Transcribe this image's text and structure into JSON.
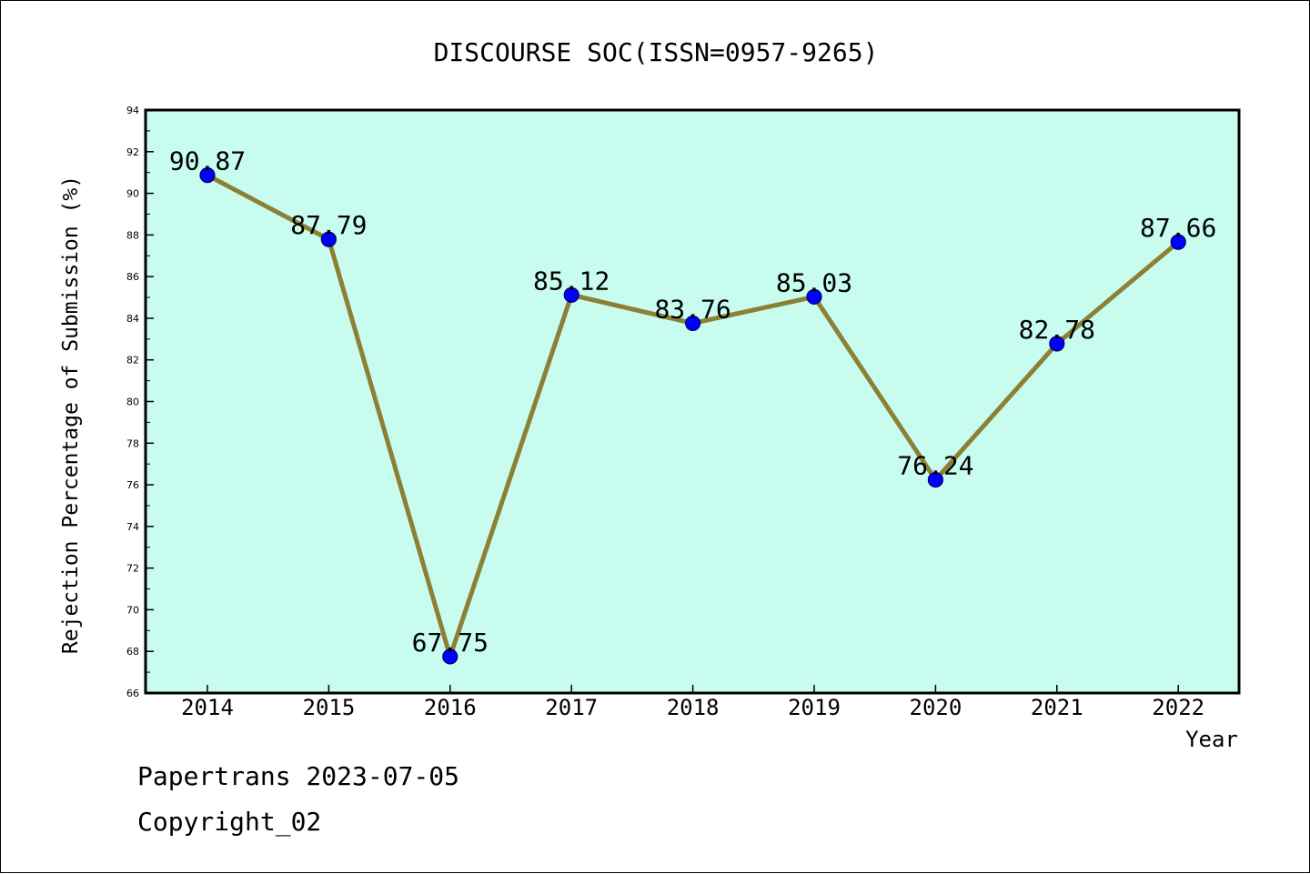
{
  "chart_data": {
    "type": "line",
    "title": "DISCOURSE SOC(ISSN=0957-9265)",
    "xlabel": "Year",
    "ylabel": "Rejection Percentage of Submission (%)",
    "categories": [
      "2014",
      "2015",
      "2016",
      "2017",
      "2018",
      "2019",
      "2020",
      "2021",
      "2022"
    ],
    "values": [
      90.87,
      87.79,
      67.75,
      85.12,
      83.76,
      85.03,
      76.24,
      82.78,
      87.66
    ],
    "data_labels": [
      "90.87",
      "87.79",
      "67.75",
      "85.12",
      "83.76",
      "85.03",
      "76.24",
      "82.78",
      "87.66"
    ],
    "ylim": [
      66,
      94
    ],
    "yticks": [
      "66",
      "68",
      "70",
      "72",
      "74",
      "76",
      "78",
      "80",
      "82",
      "84",
      "86",
      "88",
      "90",
      "92",
      "94"
    ],
    "grid": false,
    "colors": {
      "plot_background": "#c8fcee",
      "line": "#8c8036",
      "marker": "#0000ff"
    }
  },
  "footer": {
    "line1": "Papertrans 2023-07-05",
    "line2": "Copyright_02"
  }
}
